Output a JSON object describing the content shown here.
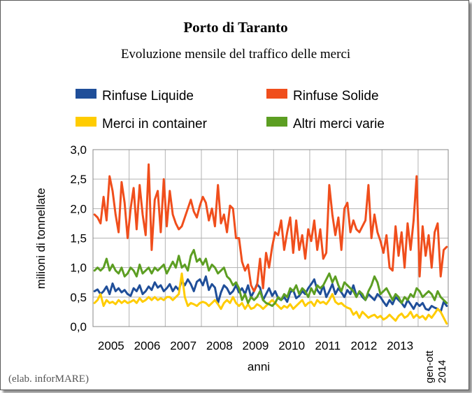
{
  "chart_data": {
    "type": "line",
    "title": "Porto di Taranto",
    "subtitle": "Evoluzione mensile del traffico delle merci",
    "xlabel": "anni",
    "ylabel": "milioni di tonnellate",
    "ylim": [
      0,
      3
    ],
    "yticks": [
      "0,0",
      "0,5",
      "1,0",
      "1,5",
      "2,0",
      "2,5",
      "3,0"
    ],
    "ytick_values": [
      0,
      0.5,
      1,
      1.5,
      2,
      2.5,
      3
    ],
    "xticks": [
      "2005",
      "2006",
      "2007",
      "2008",
      "2009",
      "2010",
      "2011",
      "2012",
      "2013"
    ],
    "xtick_last": [
      "gen-ott",
      "2014"
    ],
    "grid": true,
    "legend_position": "top",
    "source_note": "(elab. inforMARE)",
    "months_per_series": 118,
    "series": [
      {
        "name": "Rinfuse Liquide",
        "color": "#1f4e99",
        "values": [
          0.6,
          0.63,
          0.55,
          0.6,
          0.68,
          0.55,
          0.73,
          0.6,
          0.65,
          0.58,
          0.62,
          0.55,
          0.52,
          0.65,
          0.6,
          0.7,
          0.55,
          0.6,
          0.68,
          0.62,
          0.75,
          0.66,
          0.7,
          0.6,
          0.65,
          0.72,
          0.6,
          0.68,
          0.62,
          0.78,
          0.7,
          0.8,
          0.72,
          0.6,
          0.76,
          0.8,
          0.7,
          0.85,
          0.62,
          0.72,
          0.66,
          0.4,
          0.58,
          0.7,
          0.65,
          0.55,
          0.6,
          0.7,
          0.58,
          0.65,
          0.55,
          0.7,
          0.5,
          0.6,
          0.72,
          0.66,
          0.45,
          0.55,
          0.65,
          0.52,
          0.6,
          0.48,
          0.45,
          0.5,
          0.42,
          0.58,
          0.62,
          0.48,
          0.52,
          0.6,
          0.55,
          0.65,
          0.72,
          0.8,
          0.62,
          0.55,
          0.7,
          0.5,
          0.6,
          0.72,
          0.55,
          0.65,
          0.58,
          0.5,
          0.62,
          0.55,
          0.7,
          0.52,
          0.58,
          0.5,
          0.45,
          0.55,
          0.5,
          0.45,
          0.55,
          0.5,
          0.42,
          0.35,
          0.45,
          0.38,
          0.5,
          0.45,
          0.4,
          0.33,
          0.45,
          0.38,
          0.3,
          0.4,
          0.35,
          0.4,
          0.3,
          0.28,
          0.35,
          0.32,
          0.3,
          0.25,
          0.42,
          0.35
        ]
      },
      {
        "name": "Rinfuse Solide",
        "color": "#f04e1c",
        "values": [
          1.9,
          1.85,
          1.75,
          2.2,
          1.8,
          2.55,
          2.3,
          1.9,
          1.6,
          2.45,
          2.1,
          1.5,
          2.0,
          2.35,
          1.65,
          2.4,
          1.9,
          1.55,
          2.75,
          1.3,
          2.15,
          2.3,
          1.6,
          2.5,
          1.7,
          2.3,
          1.9,
          1.75,
          1.65,
          1.7,
          1.85,
          2.0,
          2.15,
          1.95,
          1.85,
          2.05,
          2.2,
          2.1,
          1.8,
          2.0,
          1.7,
          2.4,
          1.75,
          1.9,
          1.6,
          2.05,
          2.0,
          1.5,
          1.5,
          1.1,
          0.95,
          1.05,
          0.7,
          0.6,
          0.7,
          1.15,
          0.65,
          1.25,
          1.0,
          1.35,
          1.6,
          1.55,
          1.8,
          1.3,
          1.6,
          1.85,
          1.25,
          1.8,
          1.3,
          1.55,
          1.15,
          1.65,
          1.45,
          1.8,
          1.3,
          1.65,
          1.15,
          1.25,
          2.4,
          1.9,
          1.55,
          1.85,
          1.3,
          2.0,
          2.1,
          1.6,
          1.8,
          1.65,
          1.6,
          1.7,
          1.8,
          2.4,
          1.5,
          1.9,
          1.6,
          1.45,
          1.25,
          1.55,
          1.0,
          0.95,
          1.7,
          1.2,
          1.6,
          1.0,
          1.75,
          1.3,
          1.8,
          2.55,
          0.85,
          1.7,
          1.2,
          1.55,
          1.0,
          1.6,
          1.75,
          0.85,
          1.3,
          1.35
        ]
      },
      {
        "name": "Merci in container",
        "color": "#ffcc00",
        "values": [
          0.4,
          0.45,
          0.55,
          0.35,
          0.45,
          0.4,
          0.42,
          0.38,
          0.45,
          0.4,
          0.44,
          0.4,
          0.42,
          0.45,
          0.4,
          0.48,
          0.42,
          0.45,
          0.5,
          0.45,
          0.5,
          0.45,
          0.48,
          0.45,
          0.5,
          0.5,
          0.45,
          0.5,
          0.55,
          0.9,
          0.5,
          0.35,
          0.4,
          0.38,
          0.35,
          0.4,
          0.42,
          0.4,
          0.35,
          0.4,
          0.45,
          0.38,
          0.3,
          0.4,
          0.45,
          0.4,
          0.5,
          0.4,
          0.35,
          0.4,
          0.3,
          0.38,
          0.3,
          0.32,
          0.38,
          0.35,
          0.3,
          0.35,
          0.4,
          0.45,
          0.4,
          0.35,
          0.3,
          0.35,
          0.32,
          0.38,
          0.3,
          0.35,
          0.4,
          0.45,
          0.35,
          0.4,
          0.42,
          0.35,
          0.45,
          0.4,
          0.42,
          0.38,
          0.45,
          0.55,
          0.42,
          0.38,
          0.4,
          0.35,
          0.32,
          0.3,
          0.2,
          0.25,
          0.15,
          0.25,
          0.2,
          0.15,
          0.18,
          0.2,
          0.15,
          0.18,
          0.12,
          0.15,
          0.2,
          0.15,
          0.1,
          0.18,
          0.22,
          0.15,
          0.18,
          0.25,
          0.15,
          0.2,
          0.15,
          0.18,
          0.12,
          0.2,
          0.15,
          0.22,
          0.3,
          0.25,
          0.15,
          0.05
        ]
      },
      {
        "name": "Altri merci varie",
        "color": "#5c9e22",
        "values": [
          0.95,
          1.0,
          0.95,
          1.0,
          1.15,
          0.95,
          1.05,
          0.95,
          0.9,
          1.0,
          0.85,
          0.9,
          1.0,
          0.95,
          0.85,
          1.05,
          0.9,
          0.95,
          1.0,
          0.9,
          1.0,
          0.95,
          1.0,
          1.05,
          0.9,
          1.0,
          1.1,
          1.0,
          1.2,
          1.0,
          1.05,
          0.95,
          1.2,
          1.3,
          1.1,
          1.15,
          1.05,
          1.15,
          0.95,
          1.05,
          1.0,
          0.9,
          0.95,
          1.0,
          0.85,
          0.8,
          0.7,
          0.75,
          0.65,
          0.45,
          0.55,
          0.4,
          0.5,
          0.45,
          0.5,
          0.6,
          0.45,
          0.4,
          0.38,
          0.35,
          0.4,
          0.5,
          0.45,
          0.55,
          0.5,
          0.65,
          0.6,
          0.7,
          0.55,
          0.65,
          0.6,
          0.5,
          0.65,
          0.55,
          0.7,
          0.65,
          0.7,
          0.8,
          0.9,
          0.75,
          0.85,
          0.7,
          0.6,
          0.75,
          0.7,
          0.65,
          0.6,
          0.5,
          0.6,
          0.55,
          0.45,
          0.6,
          0.7,
          0.85,
          0.75,
          0.55,
          0.6,
          0.65,
          0.55,
          0.45,
          0.55,
          0.5,
          0.4,
          0.5,
          0.45,
          0.55,
          0.5,
          0.65,
          0.6,
          0.5,
          0.55,
          0.6,
          0.55,
          0.45,
          0.6,
          0.5,
          0.45,
          0.4
        ]
      }
    ]
  }
}
